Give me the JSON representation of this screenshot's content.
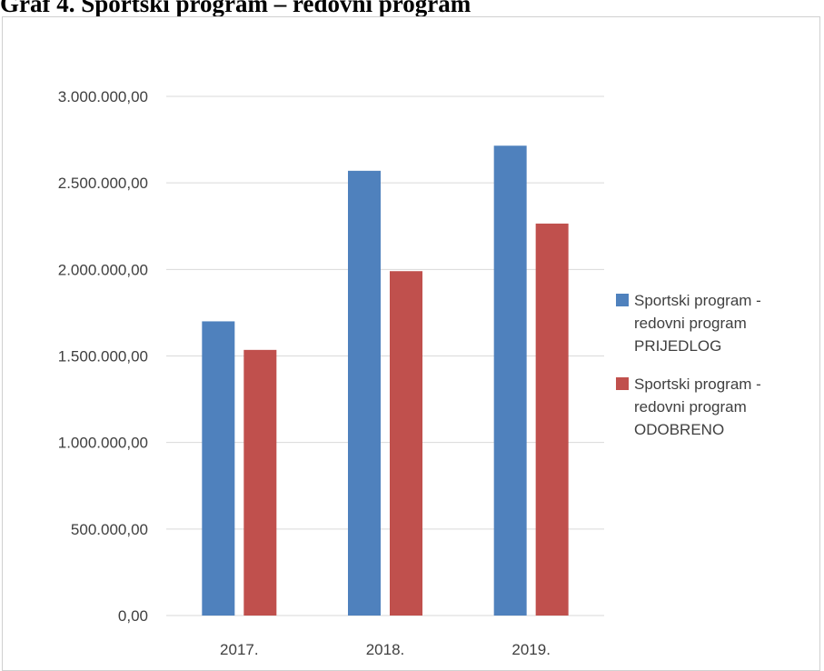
{
  "chart_data": {
    "type": "bar",
    "title": "Graf 4. Sportski program – redovni program",
    "categories": [
      "2017.",
      "2018.",
      "2019."
    ],
    "ylim": [
      0,
      3000000
    ],
    "yticks": [
      0,
      500000,
      1000000,
      1500000,
      2000000,
      2500000,
      3000000
    ],
    "ytick_labels": [
      "0,00",
      "500.000,00",
      "1.000.000,00",
      "1.500.000,00",
      "2.000.000,00",
      "2.500.000,00",
      "3.000.000,00"
    ],
    "grid": true,
    "legend_position": "right",
    "series": [
      {
        "name": "Sportski program - redovni program PRIJEDLOG",
        "color": "#4f81bd",
        "values": [
          1700000,
          2570000,
          2715000
        ]
      },
      {
        "name": "Sportski program - redovni program ODOBRENO",
        "color": "#c0504d",
        "values": [
          1535000,
          1990000,
          2265000
        ]
      }
    ]
  }
}
